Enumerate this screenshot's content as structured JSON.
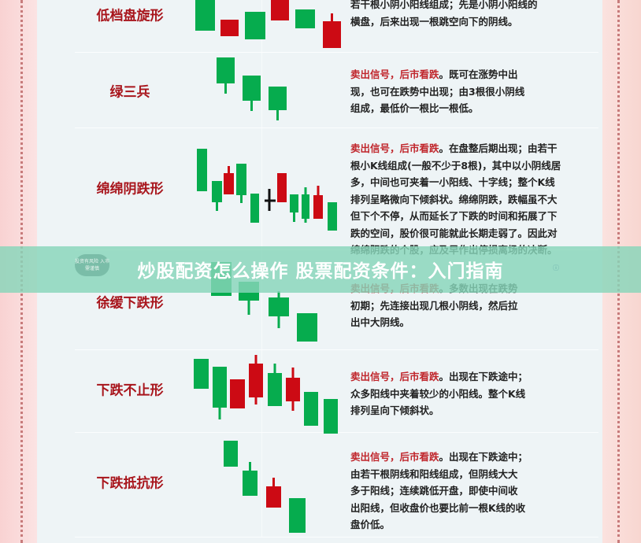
{
  "colors": {
    "bearish": "#cc0a14",
    "bullish": "#06ac4e",
    "label": "#a8151c",
    "signal": "#c0262c"
  },
  "banner": {
    "title": "炒股配资怎么操作 股票配资条件：入门指南",
    "badge": "投资有风险 入市需谨慎",
    "info_icon": "info-icon"
  },
  "patterns": [
    {
      "name": "低档盘旋形",
      "signal": "",
      "lines": [
        "若干根小阴小阳线组成；先是小阴小阳线的",
        "横盘，后来出现一根跳空向下的阴线。"
      ]
    },
    {
      "name": "绿三兵",
      "signal": "卖出信号，后市看跌",
      "lines": [
        "。既可在涨势中出",
        "现，也可在跌势中出现；由3根很小阴线",
        "组成，最低价一根比一根低。"
      ]
    },
    {
      "name": "绵绵阴跌形",
      "signal": "卖出信号，后市看跌",
      "lines": [
        "。在盘整后期出现；由若干",
        "根小K线组成(一般不少于8根)，其中以小阴线居",
        "多，中间也可夹着一小阳线、十字线；整个K线",
        "排列呈略微向下倾斜状。绵绵阴跌，跌幅虽不大",
        "但下个不停，从而延长了下跌的时间和拓展了下",
        "跌的空间，股价很可能就此长期走弱了。因此对",
        "绵绵阴跌的个股，应及早作出停损离场的决断。"
      ]
    },
    {
      "name": "徐缓下跌形",
      "signal": "卖出信号，后市看跌",
      "lines": [
        "。多数出现在跌势",
        "初期；先连接出现几根小阴线，然后拉",
        "出中大阴线。"
      ]
    },
    {
      "name": "下跌不止形",
      "signal": "卖出信号，后市看跌",
      "lines": [
        "。出现在下跌途中；",
        "众多阳线中夹着较少的小阳线。整个K线",
        "排列呈向下倾斜状。"
      ]
    },
    {
      "name": "下跌抵抗形",
      "signal": "卖出信号，后市看跌",
      "lines": [
        "。出现在下跌途中；",
        "由若干根阴线和阳线组成，但阴线大大",
        "多于阳线；连续跳低开盘，即使中间收",
        "出阳线，但收盘价也要比前一根K线的收",
        "盘价低。"
      ]
    }
  ]
}
